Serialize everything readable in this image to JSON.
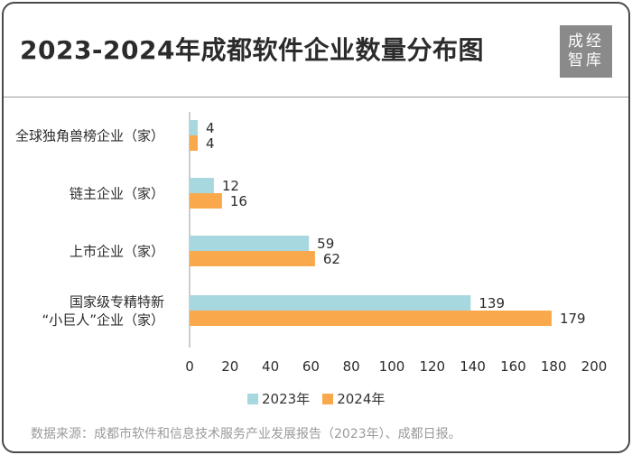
{
  "header": {
    "title": "2023-2024年成都软件企业数量分布图",
    "logo_text": [
      "成经",
      "智库"
    ]
  },
  "footer": {
    "source": "数据来源：成都市软件和信息技术服务产业发展报告（2023年）、成都日报。"
  },
  "colors": {
    "series_2023": "#a8d8df",
    "series_2024": "#f9a94b",
    "axis": "#9a9a9a",
    "text": "#2b2b2b"
  },
  "chart_data": {
    "type": "bar",
    "orientation": "horizontal",
    "categories": [
      [
        "全球独角兽榜企业（家）"
      ],
      [
        "链主企业（家）"
      ],
      [
        "上市企业（家）"
      ],
      [
        "国家级专精特新",
        "“小巨人”企业（家）"
      ]
    ],
    "series": [
      {
        "name": "2023年",
        "values": [
          4,
          12,
          59,
          139
        ]
      },
      {
        "name": "2024年",
        "values": [
          4,
          16,
          62,
          179
        ]
      }
    ],
    "xlim": [
      0,
      200
    ],
    "x_ticks": [
      0,
      20,
      40,
      60,
      80,
      100,
      120,
      140,
      160,
      180,
      200
    ],
    "legend_position": "bottom",
    "grid": false
  }
}
